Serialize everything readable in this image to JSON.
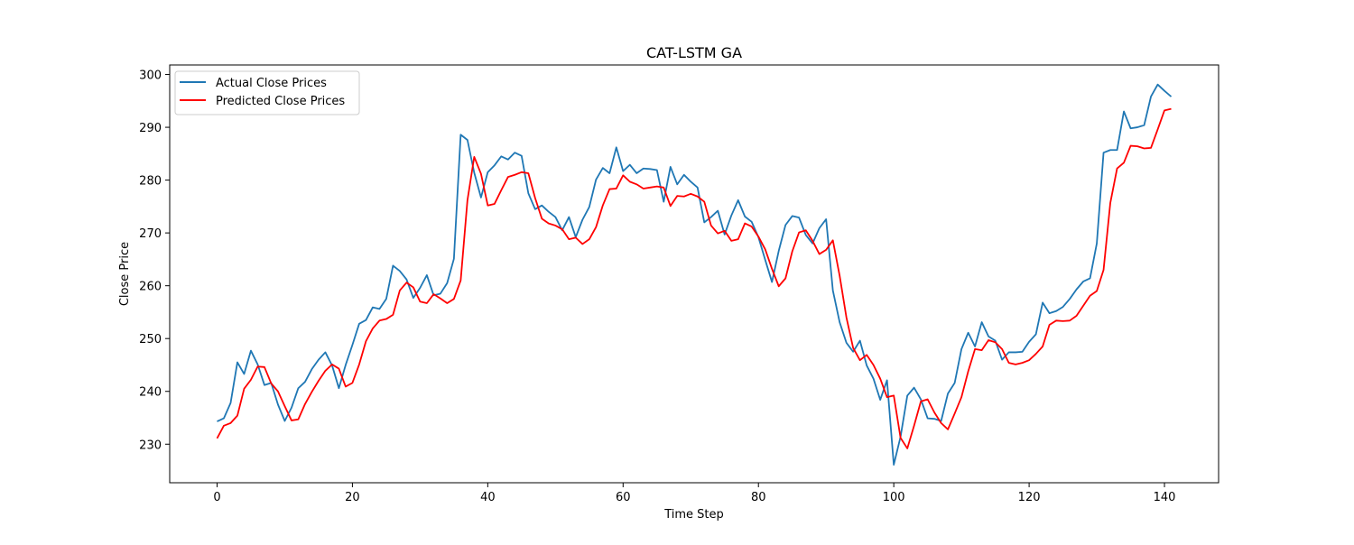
{
  "chart_data": {
    "type": "line",
    "title": "CAT-LSTM GA",
    "xlabel": "Time Step",
    "ylabel": "Close Price",
    "xlim": [
      -7,
      148
    ],
    "ylim": [
      222.7,
      301.8
    ],
    "xticks": [
      0,
      20,
      40,
      60,
      80,
      100,
      120,
      140
    ],
    "yticks": [
      230,
      240,
      250,
      260,
      270,
      280,
      290,
      300
    ],
    "grid": false,
    "legend": "top-left",
    "series": [
      {
        "name": "Actual Close Prices",
        "color": "#1f77b4",
        "x_start": 0,
        "values": [
          234.3,
          234.9,
          237.8,
          245.5,
          243.3,
          247.7,
          245.1,
          241.2,
          241.6,
          237.5,
          234.4,
          236.9,
          240.6,
          241.8,
          244.2,
          246.0,
          247.4,
          244.9,
          240.6,
          245.0,
          248.8,
          252.8,
          253.5,
          255.9,
          255.6,
          257.5,
          263.8,
          262.8,
          261.2,
          257.7,
          259.6,
          262.0,
          258.2,
          258.5,
          260.5,
          265.1,
          288.6,
          287.6,
          281.4,
          276.7,
          281.5,
          282.8,
          284.5,
          283.9,
          285.2,
          284.6,
          277.5,
          274.5,
          275.2,
          274.0,
          273.0,
          270.5,
          273.0,
          269.2,
          272.5,
          274.9,
          280.1,
          282.3,
          281.3,
          286.2,
          281.7,
          282.9,
          281.3,
          282.2,
          282.1,
          281.9,
          275.9,
          282.5,
          279.2,
          281.0,
          279.7,
          278.6,
          272.0,
          273.0,
          274.2,
          269.7,
          273.3,
          276.2,
          273.1,
          272.1,
          269.2,
          264.9,
          260.7,
          266.6,
          271.5,
          273.2,
          272.9,
          269.6,
          268.0,
          270.9,
          272.6,
          259.1,
          253.1,
          249.2,
          247.5,
          249.6,
          244.9,
          242.4,
          238.4,
          242.1,
          226.1,
          231.4,
          239.2,
          240.7,
          238.5,
          234.9,
          234.8,
          234.4,
          239.6,
          241.6,
          248.0,
          251.1,
          248.5,
          253.1,
          250.4,
          249.6,
          246.0,
          247.4,
          247.4,
          247.5,
          249.4,
          250.8,
          256.8,
          254.8,
          255.2,
          256.0,
          257.5,
          259.3,
          260.8,
          261.4,
          268.0,
          285.2,
          285.7,
          285.7,
          293.0,
          289.8,
          290.0,
          290.4,
          295.8,
          298.1,
          296.9,
          295.8
        ]
      },
      {
        "name": "Predicted Close Prices",
        "color": "#ff0000",
        "x_start": 0,
        "values": [
          231.1,
          233.5,
          234.0,
          235.4,
          240.5,
          242.2,
          244.7,
          244.6,
          241.5,
          240.0,
          237.2,
          234.5,
          234.7,
          237.6,
          239.9,
          242.0,
          243.9,
          245.1,
          244.3,
          240.9,
          241.6,
          245.1,
          249.5,
          251.9,
          253.4,
          253.7,
          254.5,
          259.1,
          260.6,
          259.7,
          257.0,
          256.7,
          258.4,
          257.6,
          256.7,
          257.5,
          261.0,
          276.2,
          284.4,
          281.2,
          275.2,
          275.5,
          278.1,
          280.6,
          281.0,
          281.5,
          281.3,
          276.6,
          272.7,
          271.8,
          271.4,
          270.7,
          268.8,
          269.1,
          267.9,
          268.8,
          271.1,
          275.2,
          278.3,
          278.4,
          280.9,
          279.7,
          279.2,
          278.4,
          278.6,
          278.8,
          278.6,
          275.1,
          277.0,
          276.9,
          277.4,
          276.9,
          275.9,
          271.4,
          269.9,
          270.4,
          268.5,
          268.8,
          271.8,
          271.2,
          269.3,
          266.9,
          263.2,
          259.9,
          261.4,
          266.5,
          270.1,
          270.5,
          268.5,
          266.0,
          266.8,
          268.6,
          261.9,
          254.0,
          248.2,
          245.9,
          246.9,
          245.0,
          242.4,
          238.9,
          239.2,
          231.2,
          229.2,
          233.5,
          238.1,
          238.5,
          236.0,
          234.0,
          232.8,
          235.8,
          238.9,
          243.8,
          248.0,
          247.8,
          249.7,
          249.3,
          248.0,
          245.4,
          245.1,
          245.4,
          245.9,
          247.1,
          248.5,
          252.6,
          253.4,
          253.3,
          253.4,
          254.3,
          256.2,
          258.1,
          259.0,
          263.0,
          275.7,
          282.2,
          283.3,
          286.5,
          286.4,
          286.0,
          286.1,
          289.6,
          293.2,
          293.5
        ]
      }
    ]
  }
}
